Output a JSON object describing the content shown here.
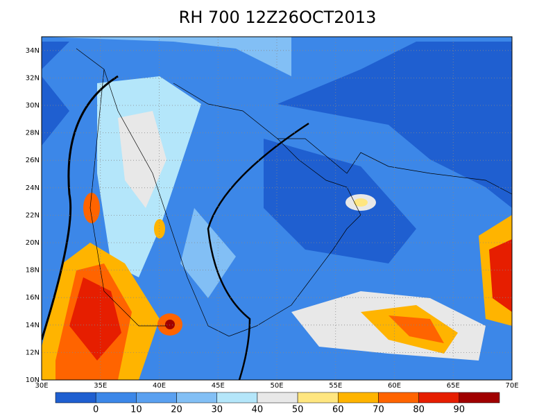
{
  "title": "RH 700 12Z26OCT2013",
  "lat_labels": [
    "10N",
    "12N",
    "14N",
    "16N",
    "18N",
    "20N",
    "22N",
    "24N",
    "26N",
    "28N",
    "30N",
    "32N",
    "34N"
  ],
  "lon_labels": [
    "30E",
    "35E",
    "40E",
    "45E",
    "50E",
    "55E",
    "60E",
    "65E",
    "70E"
  ],
  "colorbar": {
    "colors": [
      "#1f5fd0",
      "#3c87e8",
      "#5aa0f0",
      "#82bff5",
      "#b4e6fa",
      "#e8e8e8",
      "#ffe680",
      "#ffb400",
      "#ff6400",
      "#e61e00",
      "#a00000"
    ],
    "ticks": [
      0,
      10,
      20,
      30,
      40,
      50,
      60,
      70,
      80,
      90
    ]
  }
}
